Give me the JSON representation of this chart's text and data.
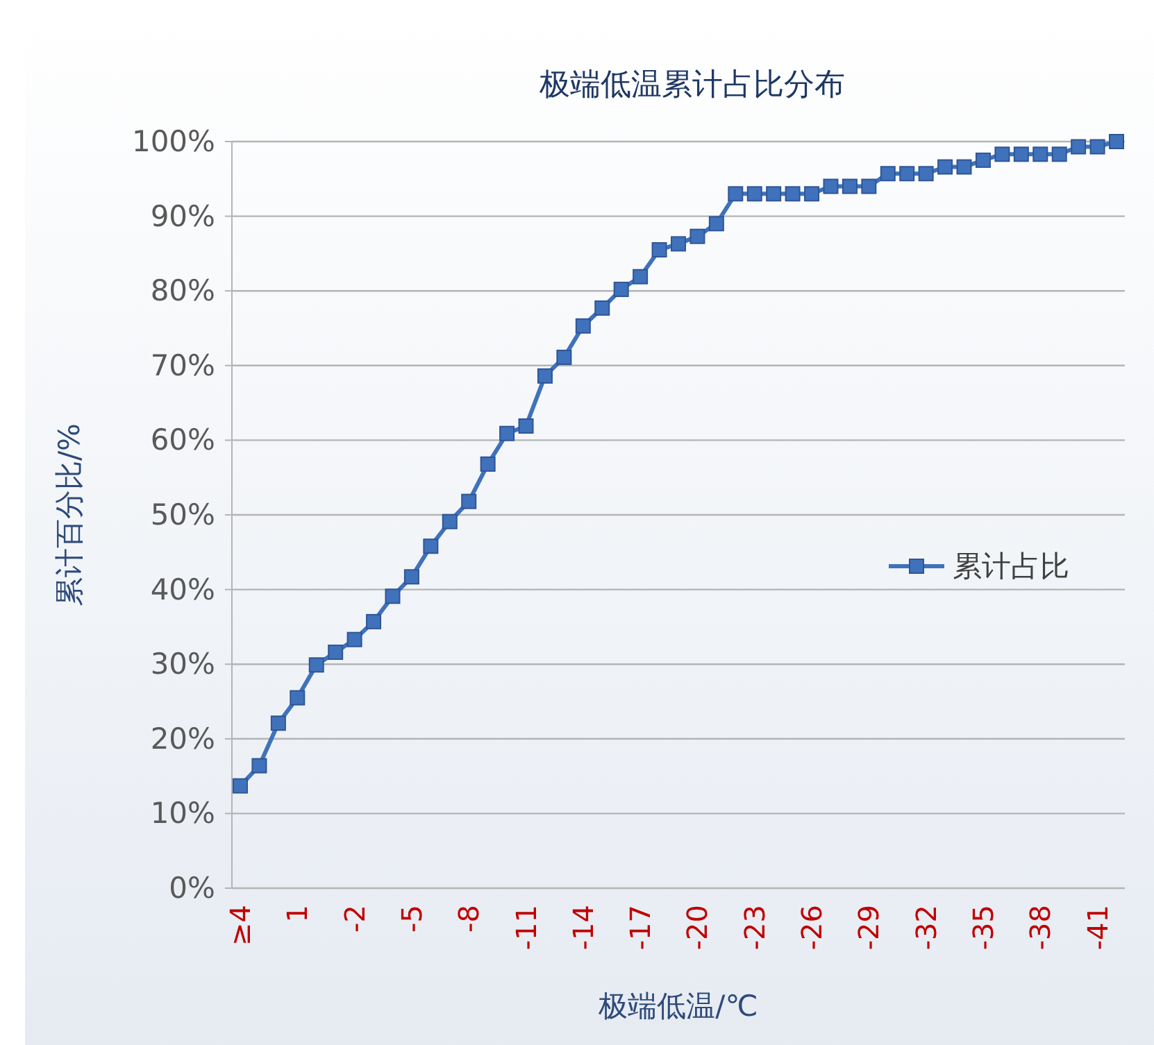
{
  "chart_data": {
    "type": "line",
    "title": "极端低温累计占比分布",
    "xlabel": "极端低温/℃",
    "ylabel": "累计百分比/%",
    "categories": [
      "≥4",
      null,
      null,
      "1",
      null,
      null,
      "-2",
      null,
      null,
      "-5",
      null,
      null,
      "-8",
      null,
      null,
      "-11",
      null,
      null,
      "-14",
      null,
      null,
      "-17",
      null,
      null,
      "-20",
      null,
      null,
      "-23",
      null,
      null,
      "-26",
      null,
      null,
      "-29",
      null,
      null,
      "-32",
      null,
      null,
      "-35",
      null,
      null,
      "-38",
      null,
      null,
      "-41",
      null
    ],
    "series": [
      {
        "name": "累计占比",
        "color": "#3f72bb",
        "values": [
          13.7,
          16.4,
          22.1,
          25.5,
          29.9,
          31.6,
          33.3,
          35.7,
          39.1,
          41.7,
          45.8,
          49.1,
          51.8,
          56.8,
          60.9,
          61.9,
          68.6,
          71.1,
          75.3,
          77.7,
          80.2,
          81.9,
          85.5,
          86.3,
          87.3,
          89.0,
          93.0,
          93.0,
          93.0,
          93.0,
          93.0,
          94.0,
          94.0,
          94.0,
          95.7,
          95.7,
          95.7,
          96.6,
          96.6,
          97.5,
          98.3,
          98.3,
          98.3,
          98.3,
          99.3,
          99.3,
          100
        ]
      }
    ],
    "ylim": [
      0,
      100
    ],
    "yticks": [
      {
        "value": 0,
        "label": "0%"
      },
      {
        "value": 10,
        "label": "10%"
      },
      {
        "value": 20,
        "label": "20%"
      },
      {
        "value": 30,
        "label": "30%"
      },
      {
        "value": 40,
        "label": "40%"
      },
      {
        "value": 50,
        "label": "50%"
      },
      {
        "value": 60,
        "label": "60%"
      },
      {
        "value": 70,
        "label": "70%"
      },
      {
        "value": 80,
        "label": "80%"
      },
      {
        "value": 90,
        "label": "90%"
      },
      {
        "value": 100,
        "label": "100%"
      }
    ],
    "grid": "y",
    "legend": "right",
    "marker": "square",
    "line_style": "solid"
  }
}
